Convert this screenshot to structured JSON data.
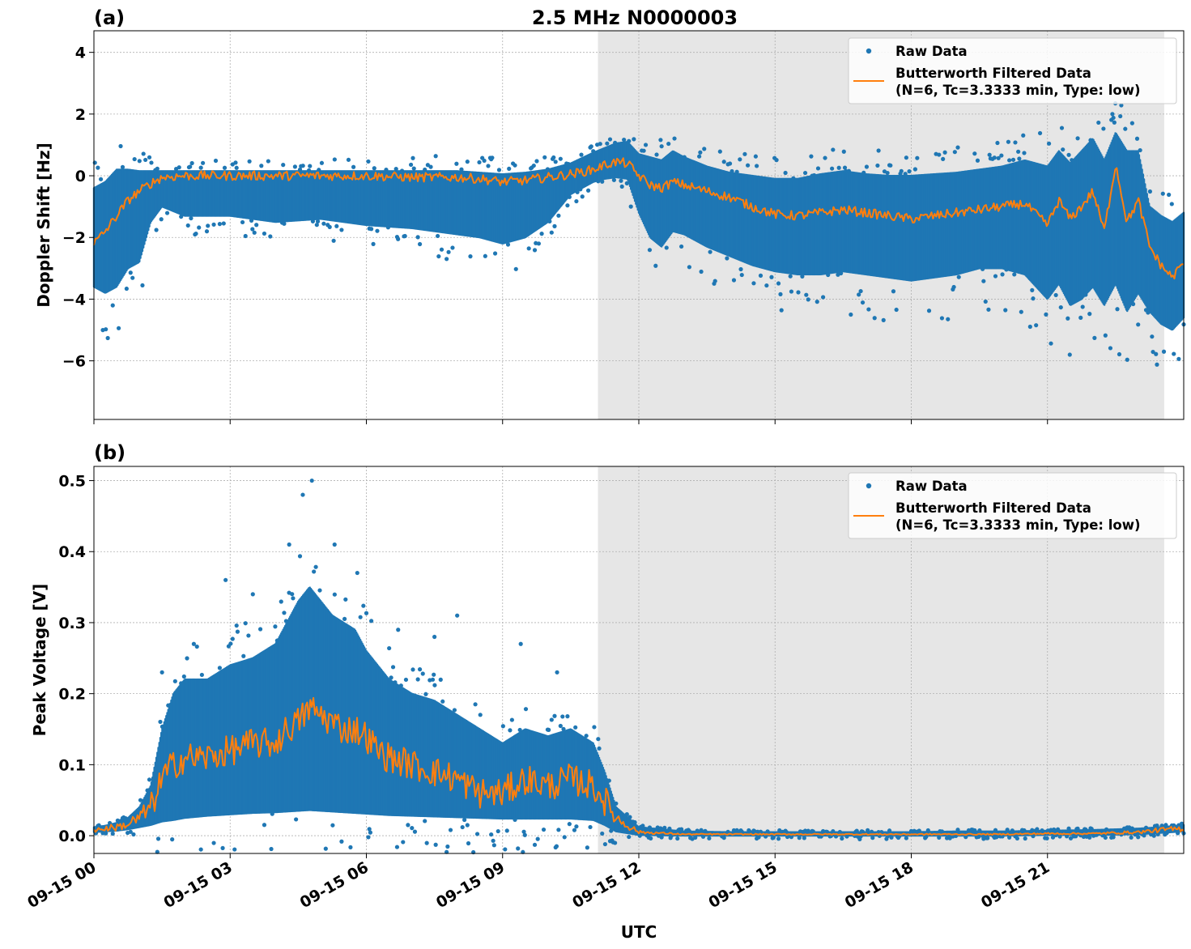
{
  "figure_title": "2.5 MHz N0000003",
  "xlabel": "UTC",
  "legend": {
    "raw": "Raw Data",
    "filtered_line1": "Butterworth Filtered Data",
    "filtered_line2": "(N=6, Tc=3.3333 min, Type: low)"
  },
  "colors": {
    "raw": "#1f77b4",
    "filtered": "#ff7f0e",
    "shade": "#e6e6e6",
    "grid": "#b0b0b0"
  },
  "chart_data": [
    {
      "type": "scatter",
      "panel_label": "(a)",
      "ylabel": "Doppler Shift [Hz]",
      "x_unit": "hours UTC since 2023-09-15 00:00",
      "xlim": [
        0,
        24
      ],
      "ylim": [
        -7.9,
        4.7
      ],
      "yticks": [
        4,
        2,
        0,
        -2,
        -4,
        -6
      ],
      "ytick_labels": [
        "4",
        "2",
        "0",
        "−2",
        "−4",
        "−6"
      ],
      "xticks": [
        0,
        3,
        6,
        9,
        12,
        15,
        18,
        21
      ],
      "xtick_labels": [
        "09-15 00",
        "09-15 03",
        "09-15 06",
        "09-15 09",
        "09-15 12",
        "09-15 15",
        "09-15 18",
        "09-15 21"
      ],
      "shaded_span": [
        11.1,
        23.57
      ],
      "grid": true,
      "legend_position": "upper right",
      "filtered": {
        "x": [
          0,
          0.25,
          0.5,
          0.75,
          1.0,
          1.25,
          1.5,
          2,
          3,
          4,
          5,
          6,
          7,
          8,
          8.5,
          9,
          9.5,
          10,
          10.5,
          11,
          11.25,
          11.5,
          11.75,
          12,
          12.25,
          12.5,
          12.75,
          13,
          13.5,
          14,
          14.5,
          15,
          15.5,
          16,
          16.5,
          17,
          17.5,
          18,
          18.5,
          19,
          19.5,
          20,
          20.5,
          21,
          21.25,
          21.5,
          21.75,
          22,
          22.25,
          22.5,
          22.75,
          23,
          23.25,
          23.5,
          23.75,
          24
        ],
        "y": [
          -2.2,
          -1.8,
          -1.3,
          -0.8,
          -0.5,
          -0.25,
          -0.05,
          0,
          0,
          0,
          0,
          0,
          -0.05,
          -0.05,
          -0.1,
          -0.2,
          -0.15,
          -0.05,
          0.05,
          0.2,
          0.35,
          0.45,
          0.4,
          0.0,
          -0.3,
          -0.4,
          -0.2,
          -0.3,
          -0.5,
          -0.7,
          -1.0,
          -1.25,
          -1.3,
          -1.2,
          -1.1,
          -1.2,
          -1.3,
          -1.4,
          -1.3,
          -1.2,
          -1.1,
          -1.0,
          -0.9,
          -1.6,
          -0.8,
          -1.4,
          -1.0,
          -0.5,
          -1.8,
          0.4,
          -1.5,
          -0.8,
          -2.3,
          -2.9,
          -3.3,
          -2.8
        ]
      },
      "raw_envelope": {
        "x": [
          0,
          0.25,
          0.5,
          0.75,
          1.0,
          1.25,
          1.5,
          2,
          3,
          4,
          5,
          6,
          7,
          8,
          8.5,
          9,
          9.5,
          10,
          10.5,
          11,
          11.25,
          11.5,
          11.75,
          12,
          12.25,
          12.5,
          12.75,
          13,
          13.5,
          14,
          14.5,
          15,
          15.5,
          16,
          16.5,
          17,
          17.5,
          18,
          18.5,
          19,
          19.5,
          20,
          20.5,
          21,
          21.25,
          21.5,
          21.75,
          22,
          22.25,
          22.5,
          22.75,
          23,
          23.25,
          23.5,
          23.75,
          24
        ],
        "ymin": [
          -3.6,
          -3.8,
          -3.6,
          -3.0,
          -2.8,
          -1.5,
          -1.0,
          -1.3,
          -1.3,
          -1.5,
          -1.4,
          -1.6,
          -1.7,
          -1.9,
          -2.0,
          -2.2,
          -2.0,
          -1.5,
          -0.6,
          -0.2,
          -0.1,
          -0.05,
          -0.1,
          -1.2,
          -2.0,
          -2.3,
          -1.8,
          -1.9,
          -2.3,
          -2.6,
          -2.9,
          -3.1,
          -3.2,
          -3.2,
          -3.1,
          -3.2,
          -3.3,
          -3.4,
          -3.3,
          -3.2,
          -3.0,
          -3.0,
          -3.2,
          -4.0,
          -3.5,
          -4.2,
          -4.0,
          -3.6,
          -4.2,
          -3.5,
          -4.4,
          -3.8,
          -4.4,
          -4.8,
          -5.0,
          -4.6
        ],
        "ymax": [
          -0.4,
          -0.2,
          0.2,
          0.2,
          0.15,
          0.15,
          0.15,
          0.15,
          0.15,
          0.15,
          0.15,
          0.15,
          0.15,
          0.15,
          0.1,
          0.05,
          0.1,
          0.2,
          0.4,
          0.75,
          0.9,
          1.05,
          1.1,
          0.7,
          0.6,
          0.5,
          0.8,
          0.6,
          0.3,
          0.1,
          0.0,
          -0.1,
          -0.1,
          0.05,
          0.15,
          0.05,
          0.0,
          0.0,
          0.05,
          0.1,
          0.2,
          0.3,
          0.5,
          0.3,
          0.8,
          0.4,
          0.8,
          1.2,
          0.5,
          1.4,
          0.8,
          0.8,
          -1.0,
          -1.3,
          -1.5,
          -1.2
        ]
      }
    },
    {
      "type": "scatter",
      "panel_label": "(b)",
      "ylabel": "Peak Voltage [V]",
      "x_unit": "hours UTC since 2023-09-15 00:00",
      "xlim": [
        0,
        24
      ],
      "ylim": [
        -0.025,
        0.52
      ],
      "yticks": [
        0.0,
        0.1,
        0.2,
        0.3,
        0.4,
        0.5
      ],
      "ytick_labels": [
        "0.0",
        "0.1",
        "0.2",
        "0.3",
        "0.4",
        "0.5"
      ],
      "xticks": [
        0,
        3,
        6,
        9,
        12,
        15,
        18,
        21
      ],
      "xtick_labels": [
        "09-15 00",
        "09-15 03",
        "09-15 06",
        "09-15 09",
        "09-15 12",
        "09-15 15",
        "09-15 18",
        "09-15 21"
      ],
      "shaded_span": [
        11.1,
        23.57
      ],
      "grid": true,
      "legend_position": "upper right",
      "filtered": {
        "x": [
          0,
          0.25,
          0.5,
          0.75,
          1.0,
          1.25,
          1.5,
          1.75,
          2,
          2.5,
          3,
          3.5,
          4,
          4.25,
          4.5,
          4.75,
          5,
          5.25,
          5.5,
          5.75,
          6,
          6.25,
          6.5,
          7,
          7.5,
          8,
          8.5,
          9,
          9.5,
          10,
          10.5,
          11,
          11.25,
          11.5,
          12,
          13,
          14,
          15,
          16,
          17,
          18,
          19,
          20,
          21,
          22,
          23,
          23.5,
          24
        ],
        "y": [
          0.008,
          0.01,
          0.012,
          0.016,
          0.025,
          0.04,
          0.08,
          0.1,
          0.11,
          0.11,
          0.12,
          0.13,
          0.13,
          0.15,
          0.16,
          0.18,
          0.17,
          0.16,
          0.15,
          0.15,
          0.14,
          0.12,
          0.11,
          0.1,
          0.09,
          0.08,
          0.06,
          0.06,
          0.08,
          0.07,
          0.08,
          0.07,
          0.05,
          0.025,
          0.005,
          0.002,
          0.002,
          0.002,
          0.002,
          0.002,
          0.002,
          0.002,
          0.002,
          0.003,
          0.003,
          0.005,
          0.008,
          0.01
        ]
      },
      "raw_envelope": {
        "x": [
          0,
          0.25,
          0.5,
          0.75,
          1.0,
          1.25,
          1.5,
          1.75,
          2,
          2.5,
          3,
          3.5,
          4,
          4.25,
          4.5,
          4.75,
          5,
          5.25,
          5.5,
          5.75,
          6,
          6.25,
          6.5,
          7,
          7.5,
          8,
          8.5,
          9,
          9.5,
          10,
          10.5,
          11,
          11.25,
          11.5,
          12,
          13,
          14,
          15,
          16,
          17,
          18,
          19,
          20,
          21,
          22,
          23,
          23.5,
          24
        ],
        "ymin": [
          0.005,
          0.006,
          0.007,
          0.009,
          0.012,
          0.015,
          0.02,
          0.022,
          0.025,
          0.028,
          0.03,
          0.032,
          0.033,
          0.034,
          0.035,
          0.036,
          0.035,
          0.034,
          0.033,
          0.032,
          0.031,
          0.03,
          0.029,
          0.028,
          0.027,
          0.026,
          0.025,
          0.024,
          0.024,
          0.024,
          0.024,
          0.022,
          0.015,
          0.006,
          0.001,
          0.0,
          0.0,
          0.0,
          0.0,
          0.0,
          0.0,
          0.0,
          0.0,
          0.001,
          0.001,
          0.002,
          0.004,
          0.006
        ],
        "ymax": [
          0.012,
          0.014,
          0.018,
          0.025,
          0.04,
          0.07,
          0.15,
          0.2,
          0.22,
          0.22,
          0.24,
          0.25,
          0.27,
          0.3,
          0.33,
          0.35,
          0.33,
          0.31,
          0.3,
          0.29,
          0.26,
          0.24,
          0.22,
          0.2,
          0.19,
          0.17,
          0.15,
          0.13,
          0.15,
          0.14,
          0.15,
          0.13,
          0.09,
          0.04,
          0.012,
          0.006,
          0.005,
          0.005,
          0.005,
          0.005,
          0.005,
          0.006,
          0.006,
          0.007,
          0.008,
          0.01,
          0.012,
          0.015
        ]
      },
      "raw_outliers": [
        {
          "x": 1.5,
          "y": 0.23
        },
        {
          "x": 2.2,
          "y": 0.27
        },
        {
          "x": 2.9,
          "y": 0.36
        },
        {
          "x": 3.5,
          "y": 0.34
        },
        {
          "x": 4.3,
          "y": 0.41
        },
        {
          "x": 4.6,
          "y": 0.48
        },
        {
          "x": 4.8,
          "y": 0.5
        },
        {
          "x": 5.3,
          "y": 0.41
        },
        {
          "x": 5.8,
          "y": 0.37
        },
        {
          "x": 6.7,
          "y": 0.29
        },
        {
          "x": 7.5,
          "y": 0.28
        },
        {
          "x": 8.0,
          "y": 0.31
        },
        {
          "x": 9.4,
          "y": 0.27
        },
        {
          "x": 10.2,
          "y": 0.23
        }
      ]
    }
  ]
}
